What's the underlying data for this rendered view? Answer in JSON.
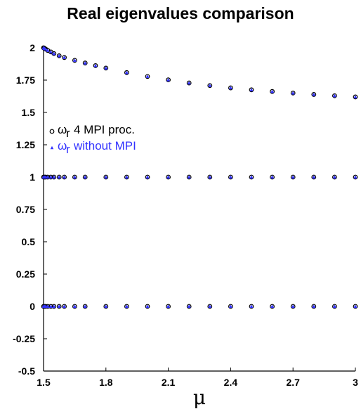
{
  "chart_data": {
    "type": "scatter",
    "title": "Real eigenvalues comparison",
    "xlabel": "μ",
    "ylabel": "",
    "xlim": [
      1.5,
      3.0
    ],
    "ylim": [
      -0.5,
      2.0
    ],
    "xticks": [
      "1.5",
      "1.8",
      "2.1",
      "2.4",
      "2.7",
      "3"
    ],
    "yticks": [
      "-0.5",
      "-0.25",
      "0",
      "0.25",
      "0.5",
      "0.75",
      "1",
      "1.25",
      "1.5",
      "1.75",
      "2"
    ],
    "grid": false,
    "legend": {
      "position": "left",
      "entries": [
        {
          "symbol": "ω",
          "subscript": "r",
          "text": "4 MPI proc.",
          "marker": "open-circle",
          "color": "#000000"
        },
        {
          "symbol": "ω",
          "subscript": "r",
          "text": "without MPI",
          "marker": "triangle",
          "color": "#3333ff"
        }
      ]
    },
    "series": [
      {
        "name": "ωr 4 MPI proc.",
        "marker": "open-circle",
        "color": "#000000",
        "branches": [
          {
            "x": [
              1.5,
              1.502,
              1.505,
              1.51,
              1.52,
              1.535,
              1.55,
              1.575,
              1.6,
              1.65,
              1.7,
              1.75,
              1.8,
              1.9,
              2.0,
              2.1,
              2.2,
              2.3,
              2.4,
              2.5,
              2.6,
              2.7,
              2.8,
              2.9,
              3.0
            ],
            "y": [
              2.0,
              1.998,
              1.995,
              1.99,
              1.98,
              1.968,
              1.955,
              1.938,
              1.925,
              1.903,
              1.882,
              1.862,
              1.843,
              1.808,
              1.778,
              1.752,
              1.728,
              1.708,
              1.69,
              1.675,
              1.662,
              1.65,
              1.639,
              1.629,
              1.62
            ]
          },
          {
            "x": [
              1.5,
              1.505,
              1.51,
              1.52,
              1.535,
              1.55,
              1.575,
              1.6,
              1.65,
              1.7,
              1.8,
              1.9,
              2.0,
              2.1,
              2.2,
              2.3,
              2.4,
              2.5,
              2.6,
              2.7,
              2.8,
              2.9,
              3.0
            ],
            "y": [
              1.0,
              1.0,
              1.0,
              1.0,
              1.0,
              1.0,
              1.0,
              1.0,
              1.0,
              1.0,
              1.0,
              1.0,
              1.0,
              1.0,
              1.0,
              1.0,
              1.0,
              1.0,
              1.0,
              1.0,
              1.0,
              1.0,
              1.0
            ]
          },
          {
            "x": [
              1.5,
              1.505,
              1.51,
              1.52,
              1.535,
              1.55,
              1.575,
              1.6,
              1.65,
              1.7,
              1.8,
              1.9,
              2.0,
              2.1,
              2.2,
              2.3,
              2.4,
              2.5,
              2.6,
              2.7,
              2.8,
              2.9,
              3.0
            ],
            "y": [
              0.0,
              0.0,
              0.0,
              0.0,
              0.0,
              0.0,
              0.0,
              0.0,
              0.0,
              0.0,
              0.0,
              0.0,
              0.0,
              0.0,
              0.0,
              0.0,
              0.0,
              0.0,
              0.0,
              0.0,
              0.0,
              0.0,
              0.0
            ]
          }
        ]
      },
      {
        "name": "ωr without MPI",
        "marker": "triangle",
        "color": "#3333ff",
        "branches": [
          {
            "x": [
              1.5,
              1.502,
              1.505,
              1.51,
              1.52,
              1.535,
              1.55,
              1.575,
              1.6,
              1.65,
              1.7,
              1.75,
              1.8,
              1.9,
              2.0,
              2.1,
              2.2,
              2.3,
              2.4,
              2.5,
              2.6,
              2.7,
              2.8,
              2.9,
              3.0
            ],
            "y": [
              2.0,
              1.998,
              1.995,
              1.99,
              1.98,
              1.968,
              1.955,
              1.938,
              1.925,
              1.903,
              1.882,
              1.862,
              1.843,
              1.808,
              1.778,
              1.752,
              1.728,
              1.708,
              1.69,
              1.675,
              1.662,
              1.65,
              1.639,
              1.629,
              1.62
            ]
          },
          {
            "x": [
              1.5,
              1.505,
              1.51,
              1.52,
              1.535,
              1.55,
              1.575,
              1.6,
              1.65,
              1.7,
              1.8,
              1.9,
              2.0,
              2.1,
              2.2,
              2.3,
              2.4,
              2.5,
              2.6,
              2.7,
              2.8,
              2.9,
              3.0
            ],
            "y": [
              1.0,
              1.0,
              1.0,
              1.0,
              1.0,
              1.0,
              1.0,
              1.0,
              1.0,
              1.0,
              1.0,
              1.0,
              1.0,
              1.0,
              1.0,
              1.0,
              1.0,
              1.0,
              1.0,
              1.0,
              1.0,
              1.0,
              1.0
            ]
          },
          {
            "x": [
              1.5,
              1.505,
              1.51,
              1.52,
              1.535,
              1.55,
              1.575,
              1.6,
              1.65,
              1.7,
              1.8,
              1.9,
              2.0,
              2.1,
              2.2,
              2.3,
              2.4,
              2.5,
              2.6,
              2.7,
              2.8,
              2.9,
              3.0
            ],
            "y": [
              0.0,
              0.0,
              0.0,
              0.0,
              0.0,
              0.0,
              0.0,
              0.0,
              0.0,
              0.0,
              0.0,
              0.0,
              0.0,
              0.0,
              0.0,
              0.0,
              0.0,
              0.0,
              0.0,
              0.0,
              0.0,
              0.0,
              0.0
            ]
          }
        ]
      }
    ]
  }
}
